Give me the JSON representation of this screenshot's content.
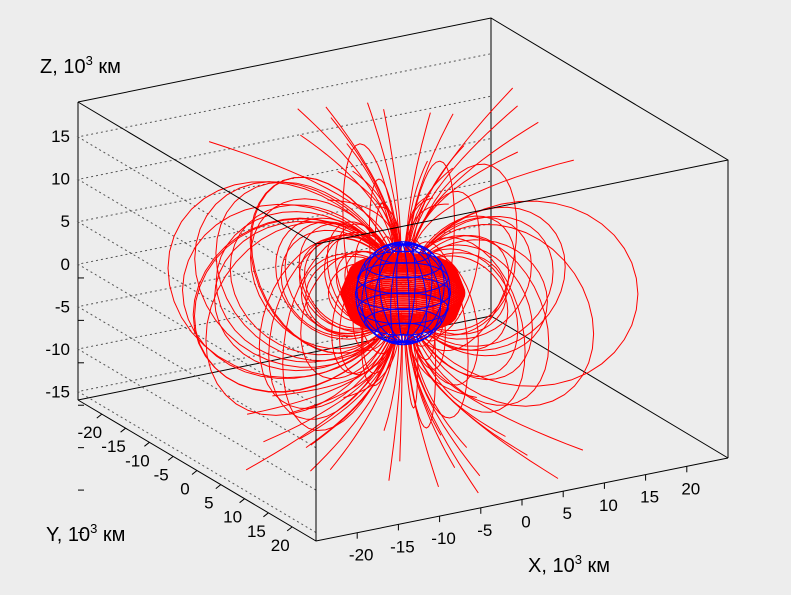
{
  "chart_data": {
    "type": "3d-field-lines",
    "axes": {
      "x": {
        "label_prefix": "X, 10",
        "label_sup": "3",
        "label_suffix": " км",
        "range": [
          -25,
          25
        ],
        "ticks": [
          "-20",
          "-15",
          "-10",
          "-5",
          "0",
          "5",
          "10",
          "15",
          "20"
        ]
      },
      "y": {
        "label_prefix": "Y, 10",
        "label_sup": "3",
        "label_suffix": " км",
        "range": [
          -25,
          25
        ],
        "ticks": [
          "20",
          "15",
          "10",
          "5",
          "0",
          "-5",
          "-10",
          "-15",
          "-20"
        ]
      },
      "z": {
        "label_prefix": "Z, 10",
        "label_sup": "3",
        "label_suffix": " км",
        "range": [
          -16,
          19
        ],
        "ticks": [
          "15",
          "10",
          "5",
          "0",
          "-5",
          "-10",
          "-15"
        ]
      }
    },
    "series": [
      {
        "kind": "field-lines",
        "color": "#ff0000"
      },
      {
        "kind": "sphere-wireframe",
        "color": "#0000ff",
        "radius": 5
      }
    ],
    "grid": true,
    "background": "#ededed"
  }
}
